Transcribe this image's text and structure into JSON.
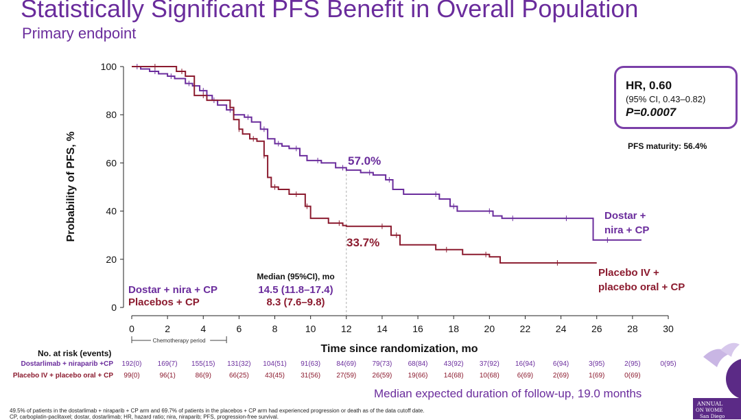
{
  "title": "Statistically Significant PFS Benefit in Overall Population",
  "subtitle": "Primary endpoint",
  "hr_box": {
    "hr": "HR, 0.60",
    "ci": "(95% CI, 0.43–0.82)",
    "p": "P=0.0007"
  },
  "maturity": "PFS maturity: 56.4%",
  "median_header": "Median (95%CI), mo",
  "legend": [
    {
      "name": "Dostar + nira + CP",
      "median": "14.5 (11.8–17.4)",
      "color": "#6a2c9c"
    },
    {
      "name": "Placebos + CP",
      "median": "8.3  (7.6–9.8)",
      "color": "#8b1a2e"
    }
  ],
  "annotations": {
    "purple_pct": "57.0%",
    "red_pct": "33.7%"
  },
  "chemo_label": "Chemotherapy period",
  "risk_table": {
    "title": "No. at risk (events)",
    "rows": [
      {
        "label": "Dostarlimab + niraparib +CP",
        "color": "#6a2c9c",
        "values": [
          "192(0)",
          "169(7)",
          "155(15)",
          "131(32)",
          "104(51)",
          "91(63)",
          "84(69)",
          "79(73)",
          "68(84)",
          "43(92)",
          "37(92)",
          "16(94)",
          "6(94)",
          "3(95)",
          "2(95)",
          "0(95)"
        ]
      },
      {
        "label": "Placebo IV + placebo oral + CP",
        "color": "#8b1a2e",
        "values": [
          "99(0)",
          "96(1)",
          "86(9)",
          "66(25)",
          "43(45)",
          "31(56)",
          "27(59)",
          "26(59)",
          "19(66)",
          "14(68)",
          "10(68)",
          "6(69)",
          "2(69)",
          "1(69)",
          "0(69)"
        ]
      }
    ]
  },
  "followup": "Median expected duration of follow-up, 19.0 months",
  "footnote1": "49.5% of patients in the dostarlimab + niraparib + CP arm and 69.7% of patients in the placebos + CP arm had experienced progression or death as of the data cutoff date.",
  "footnote2": "CP, carboplatin-paclitaxel; dostar, dostarlimab; HR, hazard ratio; nira, niraparib; PFS, progression-free survival.",
  "logo_text": [
    "ANNUAL",
    "ON WOME",
    "San Diego"
  ],
  "chart_data": {
    "type": "line",
    "xlabel": "Time since randomization, mo",
    "ylabel": "Probability of PFS, %",
    "xlim": [
      0,
      30
    ],
    "ylim": [
      0,
      100
    ],
    "xticks": [
      0,
      2,
      4,
      6,
      8,
      10,
      12,
      14,
      16,
      18,
      20,
      22,
      24,
      26,
      28,
      30
    ],
    "yticks": [
      0,
      20,
      40,
      60,
      80,
      100
    ],
    "reference_x": 12,
    "series": [
      {
        "name": "Dostar + nira + CP",
        "label_lines": [
          "Dostar +",
          "nira + CP"
        ],
        "color": "#6a2c9c",
        "x": [
          0,
          0.5,
          1,
          1.5,
          2,
          2.4,
          3,
          3.4,
          3.8,
          4.2,
          4.5,
          4.8,
          5.3,
          5.7,
          6.3,
          6.7,
          7.2,
          7.6,
          8,
          8.4,
          8.8,
          9.4,
          9.8,
          10.6,
          11.4,
          12,
          12.8,
          13.5,
          14.2,
          14.6,
          15.2,
          17.2,
          17.8,
          18.2,
          19.2,
          20.2,
          20.7,
          21.5,
          23.5,
          24.5,
          25.8,
          26.8,
          28.5
        ],
        "y": [
          100,
          99,
          98,
          97,
          96,
          95,
          93,
          92,
          90,
          88,
          86,
          84,
          82,
          80,
          79,
          77,
          74,
          70,
          68,
          67,
          66,
          63,
          61,
          60,
          58,
          57,
          56,
          55,
          53,
          49,
          47,
          45,
          42,
          40,
          40,
          38,
          37,
          37,
          37,
          37,
          28,
          28,
          28
        ]
      },
      {
        "name": "Placebos + CP",
        "label_lines": [
          "Placebo IV +",
          "placebo oral + CP"
        ],
        "color": "#8b1a2e",
        "x": [
          0,
          1.5,
          2.5,
          3,
          3.5,
          4.2,
          5.5,
          5.7,
          6,
          6.2,
          6.6,
          7,
          7.4,
          7.6,
          7.8,
          8.2,
          8.8,
          9.4,
          9.7,
          10,
          11,
          11.8,
          12,
          14.2,
          14.5,
          15,
          17,
          17.8,
          18.5,
          20,
          20.6,
          24,
          26
        ],
        "y": [
          100,
          100,
          98,
          96,
          88,
          86,
          83,
          78,
          74,
          72,
          70,
          69,
          63,
          54,
          50,
          49,
          47,
          47,
          42,
          37,
          35,
          34,
          33.7,
          33.7,
          30,
          26,
          24,
          24,
          22,
          21,
          18.5,
          18.5,
          18.5
        ]
      }
    ]
  }
}
